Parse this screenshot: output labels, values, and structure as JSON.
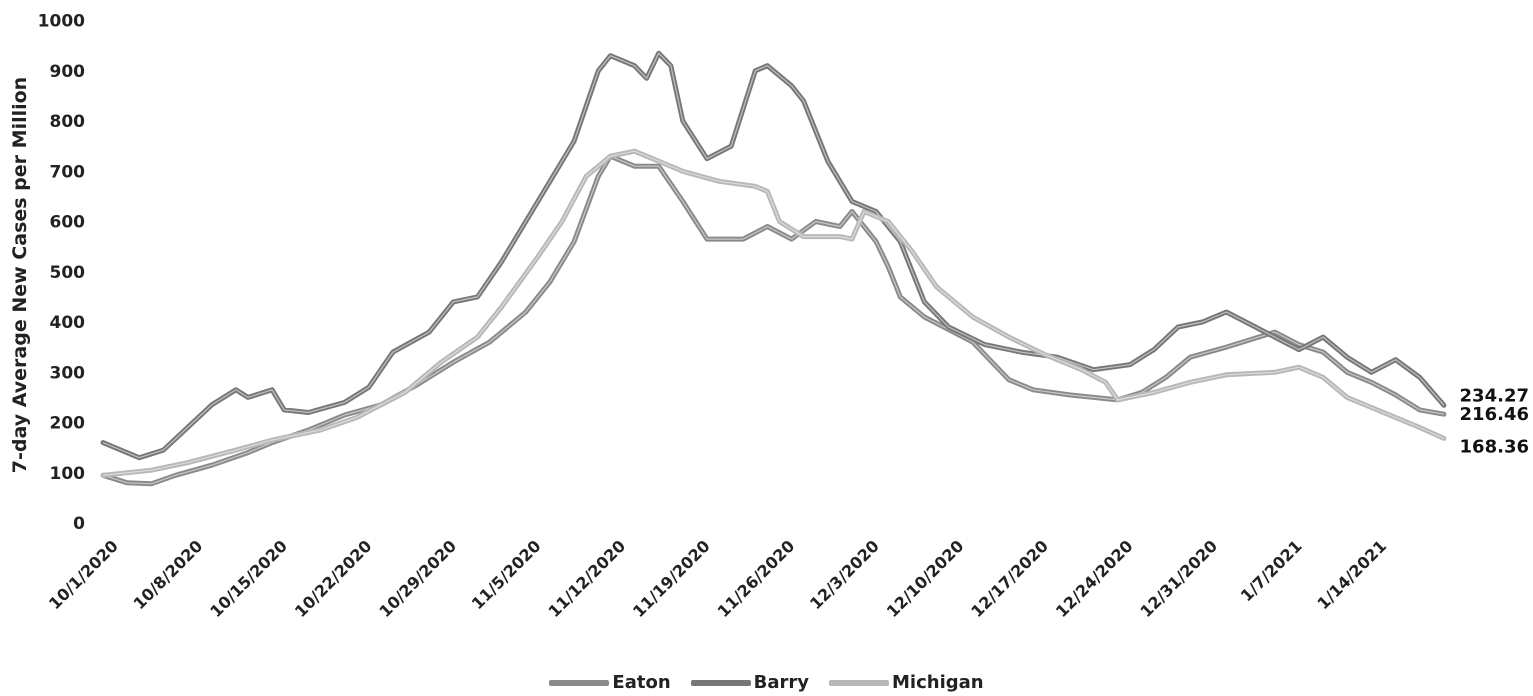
{
  "chart_data": {
    "type": "line",
    "title": "",
    "ylabel": "7-day Average New Cases per Million",
    "xlabel": "",
    "ylim": [
      0,
      1000
    ],
    "yticks": [
      "0",
      "100",
      "200",
      "300",
      "400",
      "500",
      "600",
      "700",
      "800",
      "900",
      "1000"
    ],
    "xticks": [
      "10/1/2020",
      "10/8/2020",
      "10/15/2020",
      "10/22/2020",
      "10/29/2020",
      "11/5/2020",
      "11/12/2020",
      "11/19/2020",
      "11/26/2020",
      "12/3/2020",
      "12/10/2020",
      "12/17/2020",
      "12/24/2020",
      "12/31/2020",
      "1/7/2021",
      "1/14/2021"
    ],
    "x_start": "10/1/2020",
    "legend_position": "bottom",
    "grid": false,
    "series": [
      {
        "name": "Eaton",
        "color": "#8a8a8a",
        "points": [
          [
            "10/1/2020",
            95
          ],
          [
            "10/3/2020",
            80
          ],
          [
            "10/5/2020",
            78
          ],
          [
            "10/7/2020",
            95
          ],
          [
            "10/10/2020",
            115
          ],
          [
            "10/13/2020",
            140
          ],
          [
            "10/15/2020",
            160
          ],
          [
            "10/18/2020",
            185
          ],
          [
            "10/21/2020",
            215
          ],
          [
            "10/24/2020",
            235
          ],
          [
            "10/27/2020",
            275
          ],
          [
            "10/30/2020",
            320
          ],
          [
            "11/2/2020",
            360
          ],
          [
            "11/5/2020",
            420
          ],
          [
            "11/7/2020",
            480
          ],
          [
            "11/9/2020",
            560
          ],
          [
            "11/11/2020",
            690
          ],
          [
            "11/12/2020",
            730
          ],
          [
            "11/14/2020",
            710
          ],
          [
            "11/16/2020",
            710
          ],
          [
            "11/18/2020",
            640
          ],
          [
            "11/20/2020",
            565
          ],
          [
            "11/23/2020",
            565
          ],
          [
            "11/25/2020",
            590
          ],
          [
            "11/27/2020",
            565
          ],
          [
            "11/29/2020",
            600
          ],
          [
            "12/1/2020",
            590
          ],
          [
            "12/2/2020",
            620
          ],
          [
            "12/4/2020",
            560
          ],
          [
            "12/5/2020",
            510
          ],
          [
            "12/6/2020",
            450
          ],
          [
            "12/8/2020",
            410
          ],
          [
            "12/10/2020",
            385
          ],
          [
            "12/12/2020",
            360
          ],
          [
            "12/15/2020",
            285
          ],
          [
            "12/17/2020",
            265
          ],
          [
            "12/20/2020",
            255
          ],
          [
            "12/22/2020",
            250
          ],
          [
            "12/24/2020",
            245
          ],
          [
            "12/26/2020",
            260
          ],
          [
            "12/28/2020",
            290
          ],
          [
            "12/30/2020",
            330
          ],
          [
            "1/2/2021",
            350
          ],
          [
            "1/4/2021",
            365
          ],
          [
            "1/6/2021",
            380
          ],
          [
            "1/8/2021",
            355
          ],
          [
            "1/10/2021",
            340
          ],
          [
            "1/12/2021",
            300
          ],
          [
            "1/14/2021",
            280
          ],
          [
            "1/16/2021",
            255
          ],
          [
            "1/18/2021",
            225
          ],
          [
            "1/20/2021",
            216.46
          ]
        ],
        "end_label": "216.46"
      },
      {
        "name": "Barry",
        "color": "#777777",
        "points": [
          [
            "10/1/2020",
            160
          ],
          [
            "10/4/2020",
            130
          ],
          [
            "10/6/2020",
            145
          ],
          [
            "10/8/2020",
            190
          ],
          [
            "10/10/2020",
            235
          ],
          [
            "10/12/2020",
            265
          ],
          [
            "10/13/2020",
            250
          ],
          [
            "10/15/2020",
            265
          ],
          [
            "10/16/2020",
            225
          ],
          [
            "10/18/2020",
            220
          ],
          [
            "10/21/2020",
            240
          ],
          [
            "10/23/2020",
            270
          ],
          [
            "10/25/2020",
            340
          ],
          [
            "10/28/2020",
            380
          ],
          [
            "10/30/2020",
            440
          ],
          [
            "11/1/2020",
            450
          ],
          [
            "11/3/2020",
            520
          ],
          [
            "11/5/2020",
            600
          ],
          [
            "11/7/2020",
            680
          ],
          [
            "11/9/2020",
            760
          ],
          [
            "11/11/2020",
            900
          ],
          [
            "11/12/2020",
            930
          ],
          [
            "11/14/2020",
            910
          ],
          [
            "11/15/2020",
            885
          ],
          [
            "11/16/2020",
            935
          ],
          [
            "11/17/2020",
            910
          ],
          [
            "11/18/2020",
            800
          ],
          [
            "11/20/2020",
            725
          ],
          [
            "11/22/2020",
            750
          ],
          [
            "11/24/2020",
            900
          ],
          [
            "11/25/2020",
            910
          ],
          [
            "11/27/2020",
            870
          ],
          [
            "11/28/2020",
            840
          ],
          [
            "11/30/2020",
            720
          ],
          [
            "12/2/2020",
            640
          ],
          [
            "12/4/2020",
            620
          ],
          [
            "12/6/2020",
            560
          ],
          [
            "12/8/2020",
            440
          ],
          [
            "12/10/2020",
            390
          ],
          [
            "12/13/2020",
            355
          ],
          [
            "12/16/2020",
            340
          ],
          [
            "12/19/2020",
            330
          ],
          [
            "12/22/2020",
            305
          ],
          [
            "12/25/2020",
            315
          ],
          [
            "12/27/2020",
            345
          ],
          [
            "12/29/2020",
            390
          ],
          [
            "12/31/2020",
            400
          ],
          [
            "1/2/2021",
            420
          ],
          [
            "1/4/2021",
            395
          ],
          [
            "1/6/2021",
            370
          ],
          [
            "1/8/2021",
            345
          ],
          [
            "1/10/2021",
            370
          ],
          [
            "1/12/2021",
            330
          ],
          [
            "1/14/2021",
            300
          ],
          [
            "1/16/2021",
            325
          ],
          [
            "1/18/2021",
            290
          ],
          [
            "1/20/2021",
            234.27
          ]
        ],
        "end_label": "234.27"
      },
      {
        "name": "Michigan",
        "color": "#b8b8b8",
        "points": [
          [
            "10/1/2020",
            95
          ],
          [
            "10/5/2020",
            105
          ],
          [
            "10/8/2020",
            120
          ],
          [
            "10/12/2020",
            145
          ],
          [
            "10/15/2020",
            165
          ],
          [
            "10/19/2020",
            185
          ],
          [
            "10/22/2020",
            210
          ],
          [
            "10/26/2020",
            260
          ],
          [
            "10/29/2020",
            320
          ],
          [
            "11/1/2020",
            370
          ],
          [
            "11/3/2020",
            430
          ],
          [
            "11/6/2020",
            530
          ],
          [
            "11/8/2020",
            600
          ],
          [
            "11/10/2020",
            690
          ],
          [
            "11/12/2020",
            730
          ],
          [
            "11/14/2020",
            740
          ],
          [
            "11/16/2020",
            720
          ],
          [
            "11/18/2020",
            700
          ],
          [
            "11/21/2020",
            680
          ],
          [
            "11/24/2020",
            670
          ],
          [
            "11/25/2020",
            660
          ],
          [
            "11/26/2020",
            600
          ],
          [
            "11/28/2020",
            570
          ],
          [
            "12/1/2020",
            570
          ],
          [
            "12/2/2020",
            565
          ],
          [
            "12/3/2020",
            620
          ],
          [
            "12/5/2020",
            600
          ],
          [
            "12/7/2020",
            540
          ],
          [
            "12/9/2020",
            470
          ],
          [
            "12/12/2020",
            410
          ],
          [
            "12/15/2020",
            370
          ],
          [
            "12/18/2020",
            335
          ],
          [
            "12/21/2020",
            305
          ],
          [
            "12/23/2020",
            280
          ],
          [
            "12/24/2020",
            245
          ],
          [
            "12/27/2020",
            260
          ],
          [
            "12/30/2020",
            280
          ],
          [
            "1/2/2021",
            295
          ],
          [
            "1/6/2021",
            300
          ],
          [
            "1/8/2021",
            310
          ],
          [
            "1/10/2021",
            290
          ],
          [
            "1/12/2021",
            250
          ],
          [
            "1/15/2021",
            220
          ],
          [
            "1/18/2021",
            190
          ],
          [
            "1/20/2021",
            168.36
          ]
        ],
        "end_label": "168.36"
      }
    ]
  }
}
